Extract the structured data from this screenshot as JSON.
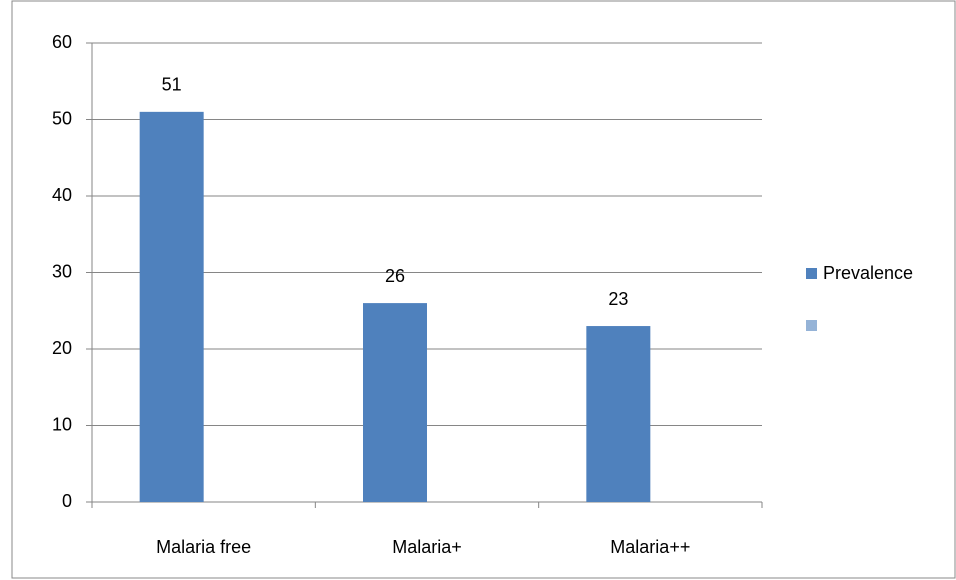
{
  "chart_data": {
    "type": "bar",
    "categories": [
      "Malaria free",
      "Malaria+",
      "Malaria++"
    ],
    "series": [
      {
        "name": "Prevalence",
        "color": "#4f81bd",
        "values": [
          51,
          26,
          23
        ]
      },
      {
        "name": null,
        "color": "#95b3d7",
        "values": [
          null,
          null,
          null
        ]
      }
    ],
    "ylim": [
      0,
      60
    ],
    "yticks": [
      0,
      10,
      20,
      30,
      40,
      50,
      60
    ],
    "grid": true,
    "data_labels": true,
    "legend": "right"
  }
}
